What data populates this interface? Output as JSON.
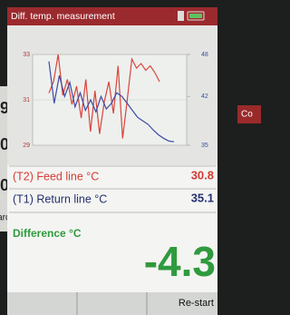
{
  "header": {
    "title": "Diff. temp. measurement"
  },
  "chart_data": {
    "type": "line",
    "series": [
      {
        "name": "(T2) Feed line °C",
        "color": "#d9453a",
        "axis": "y",
        "values": [
          31.3,
          31.8,
          33.0,
          31.2,
          31.9,
          30.8,
          31.6,
          30.2,
          31.9,
          29.6,
          31.4,
          29.5,
          30.9,
          31.8,
          30.4,
          32.5,
          29.3,
          31.0,
          32.8,
          32.4,
          32.6,
          32.3,
          32.5,
          32.2,
          31.8
        ]
      },
      {
        "name": "(T1) Return line °C",
        "color": "#3b4ba3",
        "axis": "y2",
        "values": [
          47.0,
          41.0,
          45.0,
          42.0,
          44.0,
          40.5,
          42.5,
          40.0,
          41.5,
          39.8,
          42.0,
          40.2,
          41.0,
          42.5,
          42.0,
          41.0,
          40.0,
          39.0,
          38.5,
          38.0,
          37.2,
          36.5,
          36.0,
          35.6,
          35.5
        ]
      }
    ],
    "ylim": [
      29,
      33
    ],
    "yticks": [
      29,
      31,
      33
    ],
    "y2lim": [
      35,
      48
    ],
    "y2ticks": [
      35,
      42,
      48
    ],
    "grid": true
  },
  "readings": {
    "feed": {
      "label": "(T2) Feed line °C",
      "value": "30.8"
    },
    "return": {
      "label": "(T1) Return line °C",
      "value": "35.1"
    },
    "difference": {
      "label": "Difference °C",
      "value": "-4.3"
    }
  },
  "softkeys": {
    "right": "Re-start"
  },
  "background": {
    "left_items": [
      "9",
      "0",
      "0",
      "board"
    ],
    "right_item": "Co"
  }
}
